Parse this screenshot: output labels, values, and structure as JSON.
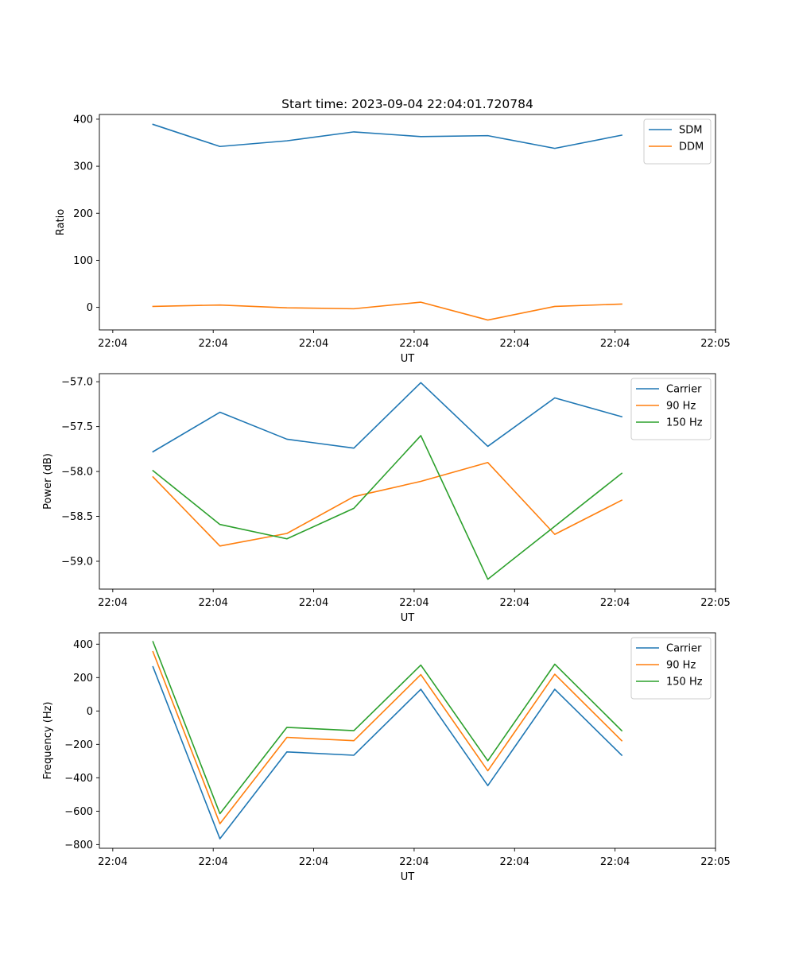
{
  "figure": {
    "title": "Start time: 2023-09-04 22:04:01.720784"
  },
  "chart_data": [
    {
      "type": "line",
      "title": "Start time: 2023-09-04 22:04:01.720784",
      "xlabel": "UT",
      "ylabel": "Ratio",
      "x": [
        1,
        2,
        3,
        4,
        5,
        6,
        7,
        8
      ],
      "xlim": [
        0.2,
        9.4
      ],
      "x_ticks": [
        0.4,
        1.9,
        3.4,
        4.9,
        6.4,
        7.9,
        9.4
      ],
      "x_tick_labels": [
        "22:04",
        "22:04",
        "22:04",
        "22:04",
        "22:04",
        "22:04",
        "22:05"
      ],
      "ylim": [
        -48,
        410
      ],
      "y_ticks": [
        0,
        100,
        200,
        300,
        400
      ],
      "y_tick_labels": [
        "0",
        "100",
        "200",
        "300",
        "400"
      ],
      "legend": "top-right",
      "series": [
        {
          "name": "SDM",
          "color": "#1f77b4",
          "values": [
            389,
            342,
            354,
            373,
            363,
            365,
            338,
            366
          ]
        },
        {
          "name": "DDM",
          "color": "#ff7f0e",
          "values": [
            2,
            5,
            -1,
            -3,
            11,
            -27,
            2,
            7
          ]
        }
      ]
    },
    {
      "type": "line",
      "title": "",
      "xlabel": "UT",
      "ylabel": "Power (dB)",
      "x": [
        1,
        2,
        3,
        4,
        5,
        6,
        7,
        8
      ],
      "xlim": [
        0.2,
        9.4
      ],
      "x_ticks": [
        0.4,
        1.9,
        3.4,
        4.9,
        6.4,
        7.9,
        9.4
      ],
      "x_tick_labels": [
        "22:04",
        "22:04",
        "22:04",
        "22:04",
        "22:04",
        "22:04",
        "22:05"
      ],
      "ylim": [
        -59.31,
        -56.91
      ],
      "y_ticks": [
        -59.0,
        -58.5,
        -58.0,
        -57.5,
        -57.0
      ],
      "y_tick_labels": [
        "−59.0",
        "−58.5",
        "−58.0",
        "−57.5",
        "−57.0"
      ],
      "legend": "top-right",
      "series": [
        {
          "name": "Carrier",
          "color": "#1f77b4",
          "values": [
            -57.78,
            -57.34,
            -57.64,
            -57.74,
            -57.01,
            -57.72,
            -57.18,
            -57.39
          ]
        },
        {
          "name": "90 Hz",
          "color": "#ff7f0e",
          "values": [
            -58.06,
            -58.83,
            -58.69,
            -58.28,
            -58.11,
            -57.9,
            -58.7,
            -58.32
          ]
        },
        {
          "name": "150 Hz",
          "color": "#2ca02c",
          "values": [
            -57.99,
            -58.59,
            -58.75,
            -58.41,
            -57.6,
            -59.2,
            -58.61,
            -58.02
          ]
        }
      ]
    },
    {
      "type": "line",
      "title": "",
      "xlabel": "UT",
      "ylabel": "Frequency (Hz)",
      "x": [
        1,
        2,
        3,
        4,
        5,
        6,
        7,
        8
      ],
      "xlim": [
        0.2,
        9.4
      ],
      "x_ticks": [
        0.4,
        1.9,
        3.4,
        4.9,
        6.4,
        7.9,
        9.4
      ],
      "x_tick_labels": [
        "22:04",
        "22:04",
        "22:04",
        "22:04",
        "22:04",
        "22:04",
        "22:05"
      ],
      "ylim": [
        -822,
        468
      ],
      "y_ticks": [
        -800,
        -600,
        -400,
        -200,
        0,
        200,
        400
      ],
      "y_tick_labels": [
        "−800",
        "−600",
        "−400",
        "−200",
        "0",
        "200",
        "400"
      ],
      "legend": "top-right",
      "series": [
        {
          "name": "Carrier",
          "color": "#1f77b4",
          "values": [
            265,
            -765,
            -245,
            -265,
            130,
            -447,
            130,
            -265
          ]
        },
        {
          "name": "90 Hz",
          "color": "#ff7f0e",
          "values": [
            355,
            -675,
            -158,
            -178,
            218,
            -358,
            220,
            -178
          ]
        },
        {
          "name": "150 Hz",
          "color": "#2ca02c",
          "values": [
            415,
            -615,
            -98,
            -118,
            275,
            -298,
            280,
            -118
          ]
        }
      ]
    }
  ]
}
